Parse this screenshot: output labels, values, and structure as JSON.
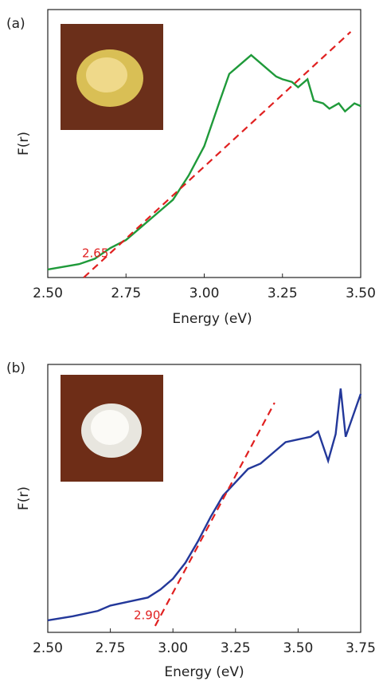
{
  "chart_data": [
    {
      "type": "line",
      "panel": "(a)",
      "xlabel": "Energy (eV)",
      "ylabel": "F(r)",
      "annotation": "2.65",
      "xlim": [
        2.5,
        3.5
      ],
      "ylim": [
        0,
        1
      ],
      "xticks": [
        {
          "value": 2.5,
          "label": "2.50"
        },
        {
          "value": 2.75,
          "label": "2.75"
        },
        {
          "value": 3.0,
          "label": "3.00"
        },
        {
          "value": 3.25,
          "label": "3.25"
        },
        {
          "value": 3.5,
          "label": "3.50"
        }
      ],
      "series": [
        {
          "color": "#1f9a3a",
          "x": [
            2.5,
            2.6,
            2.65,
            2.7,
            2.75,
            2.8,
            2.85,
            2.9,
            2.95,
            3.0,
            3.05,
            3.08,
            3.1,
            3.13,
            3.15,
            3.18,
            3.2,
            3.23,
            3.25,
            3.28,
            3.3,
            3.33,
            3.35,
            3.38,
            3.4,
            3.43,
            3.45,
            3.48,
            3.5
          ],
          "values": [
            0.03,
            0.05,
            0.07,
            0.11,
            0.14,
            0.19,
            0.24,
            0.29,
            0.38,
            0.49,
            0.66,
            0.76,
            0.78,
            0.81,
            0.83,
            0.8,
            0.78,
            0.75,
            0.74,
            0.73,
            0.71,
            0.74,
            0.66,
            0.65,
            0.63,
            0.65,
            0.62,
            0.65,
            0.64
          ]
        },
        {
          "color": "#e02020",
          "dashed": true,
          "x": [
            2.615,
            3.468
          ],
          "values": [
            0,
            0.917
          ]
        }
      ]
    },
    {
      "type": "line",
      "panel": "(b)",
      "xlabel": "Energy (eV)",
      "ylabel": "F(r)",
      "annotation": "2.90",
      "xlim": [
        2.5,
        3.75
      ],
      "ylim": [
        0,
        1
      ],
      "xticks": [
        {
          "value": 2.5,
          "label": "2.50"
        },
        {
          "value": 2.75,
          "label": "2.75"
        },
        {
          "value": 3.0,
          "label": "3.00"
        },
        {
          "value": 3.25,
          "label": "3.25"
        },
        {
          "value": 3.5,
          "label": "3.50"
        },
        {
          "value": 3.75,
          "label": "3.75"
        }
      ],
      "series": [
        {
          "color": "#23389a",
          "x": [
            2.5,
            2.6,
            2.7,
            2.75,
            2.8,
            2.85,
            2.9,
            2.95,
            3.0,
            3.05,
            3.1,
            3.15,
            3.2,
            3.25,
            3.3,
            3.35,
            3.4,
            3.45,
            3.5,
            3.55,
            3.58,
            3.62,
            3.65,
            3.67,
            3.69,
            3.72,
            3.75
          ],
          "values": [
            0.045,
            0.06,
            0.08,
            0.1,
            0.11,
            0.12,
            0.13,
            0.16,
            0.2,
            0.26,
            0.34,
            0.43,
            0.51,
            0.56,
            0.61,
            0.63,
            0.67,
            0.71,
            0.72,
            0.73,
            0.75,
            0.64,
            0.74,
            0.91,
            0.73,
            0.81,
            0.89
          ]
        },
        {
          "color": "#e02020",
          "dashed": true,
          "x": [
            2.929,
            3.406
          ],
          "values": [
            0.024,
            0.857
          ]
        }
      ]
    }
  ]
}
